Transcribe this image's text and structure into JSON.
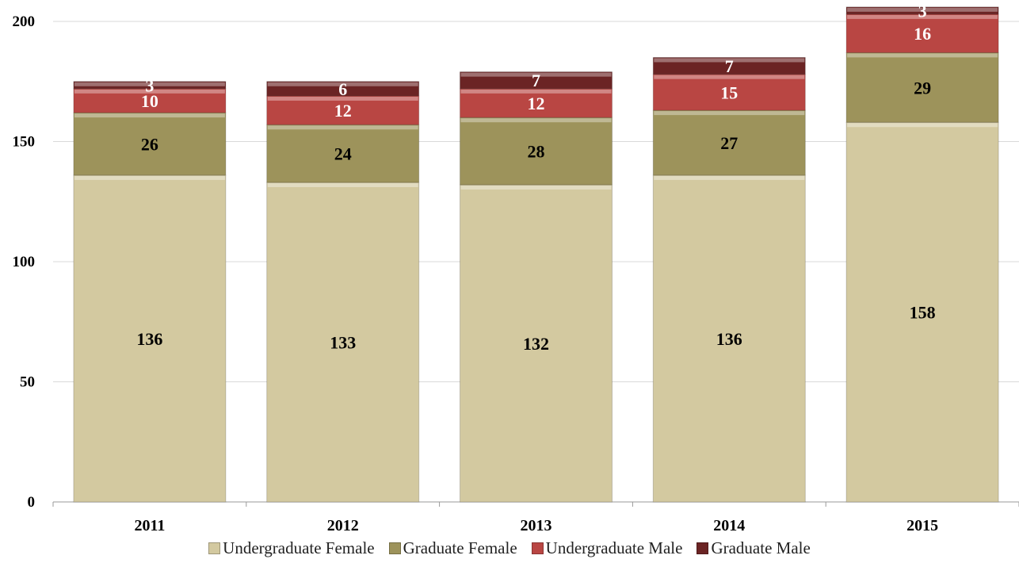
{
  "chart_data": {
    "type": "bar",
    "stacked": true,
    "categories": [
      "2011",
      "2012",
      "2013",
      "2014",
      "2015"
    ],
    "series": [
      {
        "name": "Undergraduate Female",
        "color": "#d3c9a0",
        "label_color": "#000000",
        "values": [
          136,
          133,
          132,
          136,
          158
        ]
      },
      {
        "name": "Graduate Female",
        "color": "#9d935b",
        "label_color": "#000000",
        "values": [
          26,
          24,
          28,
          27,
          29
        ]
      },
      {
        "name": "Undergraduate Male",
        "color": "#b94643",
        "label_color": "#ffffff",
        "values": [
          10,
          12,
          12,
          15,
          16
        ]
      },
      {
        "name": "Graduate Male",
        "color": "#6b2424",
        "label_color": "#ffffff",
        "values": [
          3,
          6,
          7,
          7,
          3
        ]
      }
    ],
    "ylim": [
      0,
      200
    ],
    "yticks": [
      "0",
      "50",
      "100",
      "150",
      "200"
    ],
    "title": "",
    "xlabel": "",
    "ylabel": "",
    "grid": true,
    "legend_position": "bottom"
  }
}
